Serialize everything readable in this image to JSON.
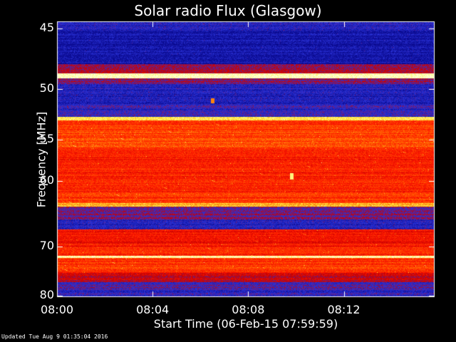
{
  "chart_data": {
    "type": "heatmap",
    "title": "Solar radio Flux (Glasgow)",
    "xlabel": "Start Time (06-Feb-15 07:59:59)",
    "ylabel": "Frequency [MHz]",
    "x_ticks": [
      "08:00",
      "08:04",
      "08:08",
      "08:12"
    ],
    "x_tick_minutes": [
      0,
      4,
      8,
      12
    ],
    "xlim_minutes": [
      0,
      15.8
    ],
    "y_ticks": [
      45,
      50,
      55,
      60,
      70,
      80
    ],
    "ylim": [
      44.5,
      80.3
    ],
    "y_scale": "reciprocal",
    "colormap": [
      "#0a0a90",
      "#2a32d8",
      "#c80000",
      "#ff1a00",
      "#ff6a00",
      "#ffee40",
      "#ffffd8"
    ],
    "bands": [
      {
        "from": 44.5,
        "to": 45.2,
        "level": 0.1
      },
      {
        "from": 45.2,
        "to": 47.8,
        "level": 0.05
      },
      {
        "from": 47.8,
        "to": 48.6,
        "level": 0.3
      },
      {
        "from": 48.6,
        "to": 49.0,
        "level": 0.98
      },
      {
        "from": 49.0,
        "to": 49.5,
        "level": 0.25
      },
      {
        "from": 49.5,
        "to": 51.5,
        "level": 0.1
      },
      {
        "from": 51.5,
        "to": 52.6,
        "level": 0.15
      },
      {
        "from": 52.6,
        "to": 53.0,
        "level": 0.85
      },
      {
        "from": 53.0,
        "to": 54.0,
        "level": 0.55
      },
      {
        "from": 54.0,
        "to": 56.0,
        "level": 0.6
      },
      {
        "from": 56.0,
        "to": 61.5,
        "level": 0.5
      },
      {
        "from": 61.5,
        "to": 63.0,
        "level": 0.55
      },
      {
        "from": 63.0,
        "to": 63.5,
        "level": 0.75
      },
      {
        "from": 63.5,
        "to": 65.5,
        "level": 0.25
      },
      {
        "from": 65.5,
        "to": 67.0,
        "level": 0.12
      },
      {
        "from": 67.0,
        "to": 69.5,
        "level": 0.45
      },
      {
        "from": 69.5,
        "to": 71.6,
        "level": 0.5
      },
      {
        "from": 71.6,
        "to": 72.0,
        "level": 0.95
      },
      {
        "from": 72.0,
        "to": 75.0,
        "level": 0.55
      },
      {
        "from": 75.0,
        "to": 77.0,
        "level": 0.35
      },
      {
        "from": 77.0,
        "to": 78.5,
        "level": 0.2
      },
      {
        "from": 78.5,
        "to": 80.3,
        "level": 0.15
      }
    ],
    "bursts": [
      {
        "minute": 9.8,
        "from": 59.0,
        "to": 59.8,
        "level": 0.9
      },
      {
        "minute": 6.5,
        "from": 50.8,
        "to": 51.3,
        "level": 0.7
      }
    ]
  },
  "footer": "Updated Tue Aug  9 01:35:04 2016"
}
